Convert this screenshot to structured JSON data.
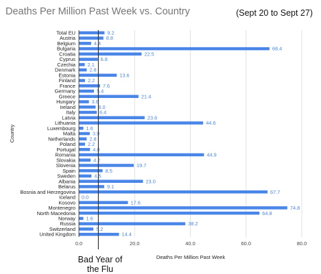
{
  "chart_data": {
    "type": "bar",
    "orientation": "horizontal",
    "title": "Deaths Per Million Past Week vs. Country",
    "subtitle": "(Sept 20 to Sept 27)",
    "xlabel": "Deaths Per Million Past Week",
    "ylabel": "Country",
    "xlim": [
      0,
      80
    ],
    "xticks": [
      "0.0",
      "20.0",
      "40.0",
      "60.0",
      "80.0"
    ],
    "grid": true,
    "bar_color": "#4a86e8",
    "categories": [
      "Total EU",
      "Austria",
      "Belgium",
      "Bulgaria",
      "Croatia",
      "Cyprus",
      "Czechia",
      "Denmark",
      "Estonia",
      "Finland",
      "France",
      "Germany",
      "Greece",
      "Hungary",
      "Ireland",
      "Italy",
      "Latvia",
      "Lithuania",
      "Luxembourg",
      "Malta",
      "Netherlands",
      "Poland",
      "Portugal",
      "Romania",
      "Slovakia",
      "Slovenia",
      "Spain",
      "Sweden",
      "Albania",
      "Belarus",
      "Bosnia and Herzegovina",
      "Iceland",
      "Kosovo",
      "Montenegro",
      "North Macedonia",
      "Norway",
      "Russia",
      "Switzerland",
      "United Kingdom"
    ],
    "values": [
      9.2,
      8.8,
      4.4,
      68.4,
      22.5,
      6.8,
      2.1,
      2.8,
      13.6,
      2.2,
      7.6,
      5.4,
      21.4,
      3.6,
      6.0,
      6.4,
      23.6,
      44.6,
      1.6,
      3.9,
      2.8,
      2.2,
      4.0,
      44.9,
      4.2,
      19.7,
      8.5,
      4.5,
      23.0,
      9.1,
      67.7,
      0.0,
      17.6,
      74.8,
      64.8,
      1.6,
      38.2,
      5.2,
      14.4
    ],
    "value_labels": [
      "9.2",
      "8.8",
      "4.4",
      "68.4",
      "22.5",
      "6.8",
      "2.1",
      "2.8",
      "13.6",
      "2.2",
      "7.6",
      "5.4",
      "21.4",
      "3.6",
      "6.0",
      "6.4",
      "23.6",
      "44.6",
      "1.6",
      "3.9",
      "2.8",
      "2.2",
      "4.0",
      "44.9",
      "4.2",
      "19.7",
      "8.5",
      "4.5",
      "23.0",
      "9.1",
      "67.7",
      "0.0",
      "17.6",
      "74.8",
      "64.8",
      "1.6",
      "38.2",
      "5.2",
      "14.4"
    ],
    "reference_line": {
      "value": 7,
      "label": "Bad Year of the Flu",
      "color": "#333333"
    }
  }
}
